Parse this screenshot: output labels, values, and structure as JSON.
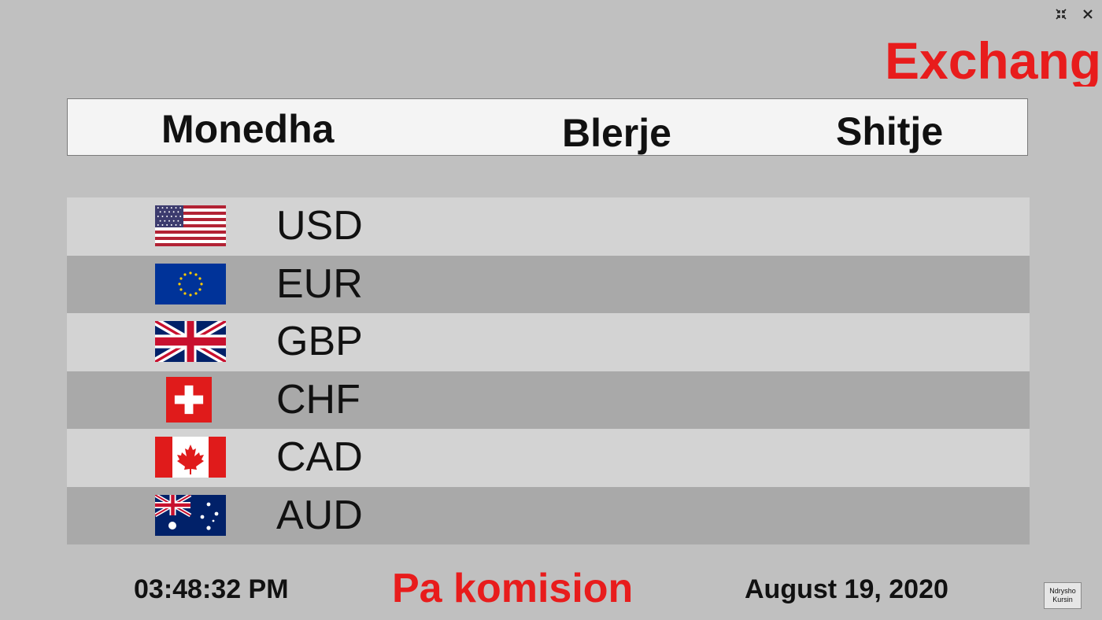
{
  "window": {
    "minimize_icon": "compress-arrows-icon",
    "close_icon": "close-icon"
  },
  "banner": {
    "text": "Exchange"
  },
  "table_header": {
    "currency": "Monedha",
    "buy": "Blerje",
    "sell": "Shitje"
  },
  "rows": [
    {
      "code": "USD",
      "flag": "us-flag-icon",
      "buy": "",
      "sell": ""
    },
    {
      "code": "EUR",
      "flag": "eu-flag-icon",
      "buy": "",
      "sell": ""
    },
    {
      "code": "GBP",
      "flag": "uk-flag-icon",
      "buy": "",
      "sell": ""
    },
    {
      "code": "CHF",
      "flag": "ch-flag-icon",
      "buy": "",
      "sell": ""
    },
    {
      "code": "CAD",
      "flag": "ca-flag-icon",
      "buy": "",
      "sell": ""
    },
    {
      "code": "AUD",
      "flag": "au-flag-icon",
      "buy": "",
      "sell": ""
    }
  ],
  "footer": {
    "time": "03:48:32 PM",
    "commission": "Pa komision",
    "date": "August 19, 2020",
    "change_button_line1": "Ndrysho",
    "change_button_line2": "Kursin"
  },
  "colors": {
    "accent_red": "#e81c1c",
    "background": "#c0c0c0",
    "row_light": "#d3d3d3",
    "row_dark": "#a9a9a9"
  }
}
